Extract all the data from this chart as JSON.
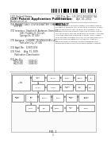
{
  "bg_color": "#ffffff",
  "barcode_color": "#000000",
  "page_border_color": "#888888",
  "header": {
    "left1": "(12) United States",
    "left2": "(19) Patent Application Publication",
    "left3": "Anderson et al.",
    "right1": "(10) Pub. No.:  US 2011/0000007 A1",
    "right2": "(43) Pub. Date:     Apr. 10, 2011"
  },
  "meta_left": [
    "(54) MAGNETICALLY COUPLED BATTERY CHARGING",
    "      SYSTEM",
    "",
    "(75) Inventors:  Stephen H. Anderson, Orem, UT",
    "                (US); Timothy G. Driscoll,",
    "                Springville, UT (US)",
    "",
    "(73) Assignee:  CURRENT TECHNOLOGIES, LLC,",
    "                Salt Lake City, UT (US)",
    "",
    "(21) Appl. No.:  12/872,555",
    "",
    "(22) Filed:      Aug. 31, 2009"
  ],
  "class_section": [
    "       Publication Classification",
    "",
    "(51) Int. Cl.",
    "     H02J 7/00         (2006.01)",
    "     H02J 5/00         (2006.01)"
  ],
  "abstract_title": "ABSTRACT",
  "fig_label": "FIG. 1",
  "page_num": "1"
}
